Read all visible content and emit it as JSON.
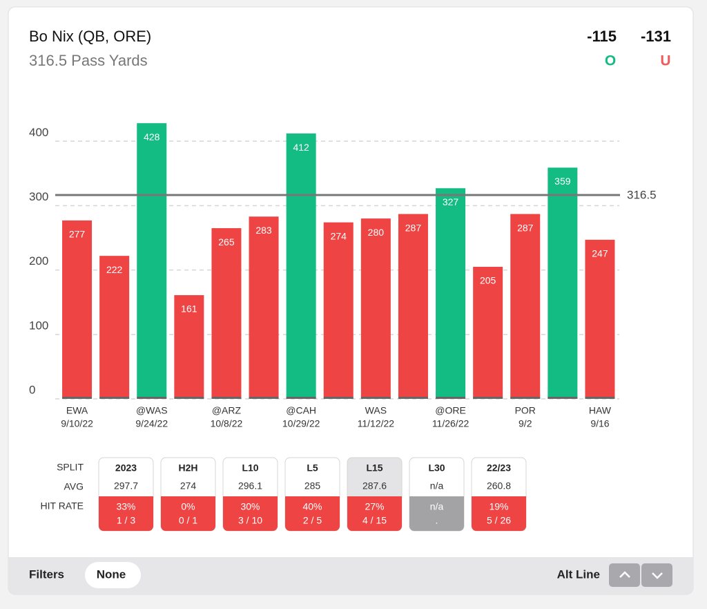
{
  "header": {
    "player": "Bo Nix (QB, ORE)",
    "market": "316.5 Pass Yards",
    "over_odds": -115,
    "under_odds": -131,
    "over_label": "O",
    "under_label": "U",
    "over_color": "#13bc82",
    "under_color": "#ef5a5a"
  },
  "chart_data": {
    "type": "bar",
    "categories": [
      "EWA",
      null,
      "@WAS",
      null,
      "@ARZ",
      null,
      "@CAH",
      null,
      "WAS",
      null,
      "@ORE",
      null,
      "POR",
      null,
      "HAW"
    ],
    "dates": [
      "9/10/22",
      null,
      "9/24/22",
      null,
      "10/8/22",
      null,
      "10/29/22",
      null,
      "11/12/22",
      null,
      "11/26/22",
      null,
      "9/2",
      null,
      "9/16"
    ],
    "values": [
      277,
      222,
      428,
      161,
      265,
      283,
      412,
      274,
      280,
      287,
      327,
      205,
      287,
      359,
      247
    ],
    "line": 316.5,
    "over_color": "#13bc82",
    "under_color": "#ef4444",
    "ylim": [
      0,
      440
    ],
    "yticks": [
      0,
      100,
      200,
      300,
      400
    ],
    "grid": true
  },
  "splits": {
    "row_labels": [
      "SPLIT",
      "AVG",
      "HIT RATE"
    ],
    "selected": 4,
    "columns": [
      {
        "name": "2023",
        "avg": "297.7",
        "hit_pct": "33%",
        "hit_count": "1 / 3",
        "hit_color": "#ef4444"
      },
      {
        "name": "H2H",
        "avg": "274",
        "hit_pct": "0%",
        "hit_count": "0 / 1",
        "hit_color": "#ef4444"
      },
      {
        "name": "L10",
        "avg": "296.1",
        "hit_pct": "30%",
        "hit_count": "3 / 10",
        "hit_color": "#ef4444"
      },
      {
        "name": "L5",
        "avg": "285",
        "hit_pct": "40%",
        "hit_count": "2 / 5",
        "hit_color": "#ef4444"
      },
      {
        "name": "L15",
        "avg": "287.6",
        "hit_pct": "27%",
        "hit_count": "4 / 15",
        "hit_color": "#ef4444"
      },
      {
        "name": "L30",
        "avg": "n/a",
        "hit_pct": "n/a",
        "hit_count": ".",
        "hit_color": "#a3a3a6"
      },
      {
        "name": "22/23",
        "avg": "260.8",
        "hit_pct": "19%",
        "hit_count": "5 / 26",
        "hit_color": "#ef4444"
      }
    ]
  },
  "footer": {
    "filters_label": "Filters",
    "filter_value": "None",
    "alt_line_label": "Alt Line"
  }
}
